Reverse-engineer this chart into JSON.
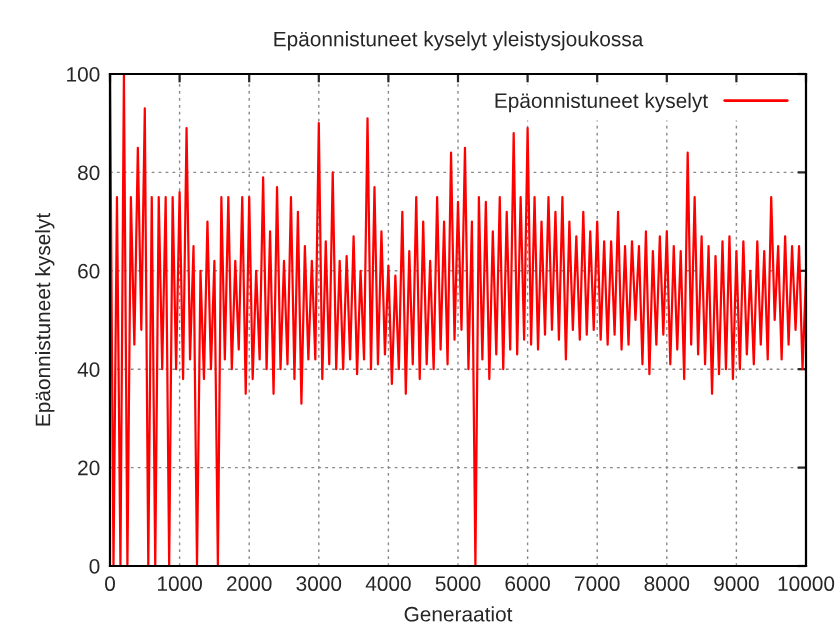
{
  "chart_data": {
    "type": "line",
    "title": "Epäonnistuneet kyselyt yleistysjoukossa",
    "xlabel": "Generaatiot",
    "ylabel": "Epäonnistuneet kyselyt",
    "xlim": [
      0,
      10000
    ],
    "ylim": [
      0,
      100
    ],
    "xticks": [
      0,
      1000,
      2000,
      3000,
      4000,
      5000,
      6000,
      7000,
      8000,
      9000,
      10000
    ],
    "yticks": [
      0,
      20,
      40,
      60,
      80,
      100
    ],
    "grid": true,
    "legend": "top right",
    "marker": "none",
    "line_style": "solid",
    "series": [
      {
        "name": "Epäonnistuneet kyselyt",
        "color": "#ff0000",
        "x": [
          0,
          50,
          100,
          150,
          200,
          250,
          300,
          350,
          400,
          450,
          500,
          550,
          600,
          650,
          700,
          750,
          800,
          850,
          900,
          950,
          1000,
          1050,
          1100,
          1150,
          1200,
          1250,
          1300,
          1350,
          1400,
          1450,
          1500,
          1550,
          1600,
          1650,
          1700,
          1750,
          1800,
          1850,
          1900,
          1950,
          2000,
          2050,
          2100,
          2150,
          2200,
          2250,
          2300,
          2350,
          2400,
          2450,
          2500,
          2550,
          2600,
          2650,
          2700,
          2750,
          2800,
          2850,
          2900,
          2950,
          3000,
          3050,
          3100,
          3150,
          3200,
          3250,
          3300,
          3350,
          3400,
          3450,
          3500,
          3550,
          3600,
          3650,
          3700,
          3750,
          3800,
          3850,
          3900,
          3950,
          4000,
          4050,
          4100,
          4150,
          4200,
          4250,
          4300,
          4350,
          4400,
          4450,
          4500,
          4550,
          4600,
          4650,
          4700,
          4750,
          4800,
          4850,
          4900,
          4950,
          5000,
          5050,
          5100,
          5150,
          5200,
          5250,
          5300,
          5350,
          5400,
          5450,
          5500,
          5550,
          5600,
          5650,
          5700,
          5750,
          5800,
          5850,
          5900,
          5950,
          6000,
          6050,
          6100,
          6150,
          6200,
          6250,
          6300,
          6350,
          6400,
          6450,
          6500,
          6550,
          6600,
          6650,
          6700,
          6750,
          6800,
          6850,
          6900,
          6950,
          7000,
          7050,
          7100,
          7150,
          7200,
          7250,
          7300,
          7350,
          7400,
          7450,
          7500,
          7550,
          7600,
          7650,
          7700,
          7750,
          7800,
          7850,
          7900,
          7950,
          8000,
          8050,
          8100,
          8150,
          8200,
          8250,
          8300,
          8350,
          8400,
          8450,
          8500,
          8550,
          8600,
          8650,
          8700,
          8750,
          8800,
          8850,
          8900,
          8950,
          9000,
          9050,
          9100,
          9150,
          9200,
          9250,
          9300,
          9350,
          9400,
          9450,
          9500,
          9550,
          9600,
          9650,
          9700,
          9750,
          9800,
          9850,
          9900,
          9950,
          10000
        ],
        "values": [
          100,
          0,
          75,
          0,
          100,
          0,
          75,
          45,
          85,
          48,
          93,
          0,
          75,
          0,
          75,
          40,
          75,
          0,
          75,
          40,
          76,
          38,
          89,
          42,
          65,
          0,
          60,
          38,
          70,
          40,
          62,
          0,
          75,
          42,
          75,
          40,
          62,
          44,
          75,
          35,
          75,
          38,
          60,
          42,
          79,
          40,
          68,
          35,
          77,
          40,
          62,
          41,
          75,
          38,
          72,
          33,
          65,
          42,
          62,
          42,
          90,
          38,
          66,
          41,
          80,
          40,
          62,
          40,
          63,
          42,
          67,
          39,
          60,
          42,
          91,
          40,
          77,
          41,
          68,
          43,
          61,
          37,
          59,
          40,
          72,
          35,
          64,
          41,
          75,
          38,
          70,
          41,
          62,
          40,
          75,
          44,
          70,
          41,
          84,
          46,
          74,
          48,
          85,
          40,
          70,
          0,
          75,
          42,
          74,
          38,
          68,
          43,
          75,
          40,
          72,
          44,
          88,
          43,
          75,
          46,
          89,
          45,
          75,
          44,
          70,
          47,
          75,
          48,
          72,
          46,
          75,
          42,
          70,
          48,
          67,
          46,
          72,
          47,
          68,
          48,
          70,
          46,
          66,
          45,
          66,
          47,
          72,
          44,
          65,
          45,
          66,
          50,
          65,
          41,
          68,
          39,
          64,
          45,
          67,
          47,
          68,
          41,
          65,
          44,
          64,
          38,
          84,
          45,
          75,
          43,
          67,
          41,
          65,
          35,
          63,
          39,
          66,
          40,
          67,
          38,
          64,
          40,
          66,
          43,
          60,
          41,
          66,
          45,
          64,
          42,
          75,
          50,
          65,
          42,
          67,
          45,
          65,
          48,
          65,
          40,
          59
        ]
      }
    ]
  }
}
